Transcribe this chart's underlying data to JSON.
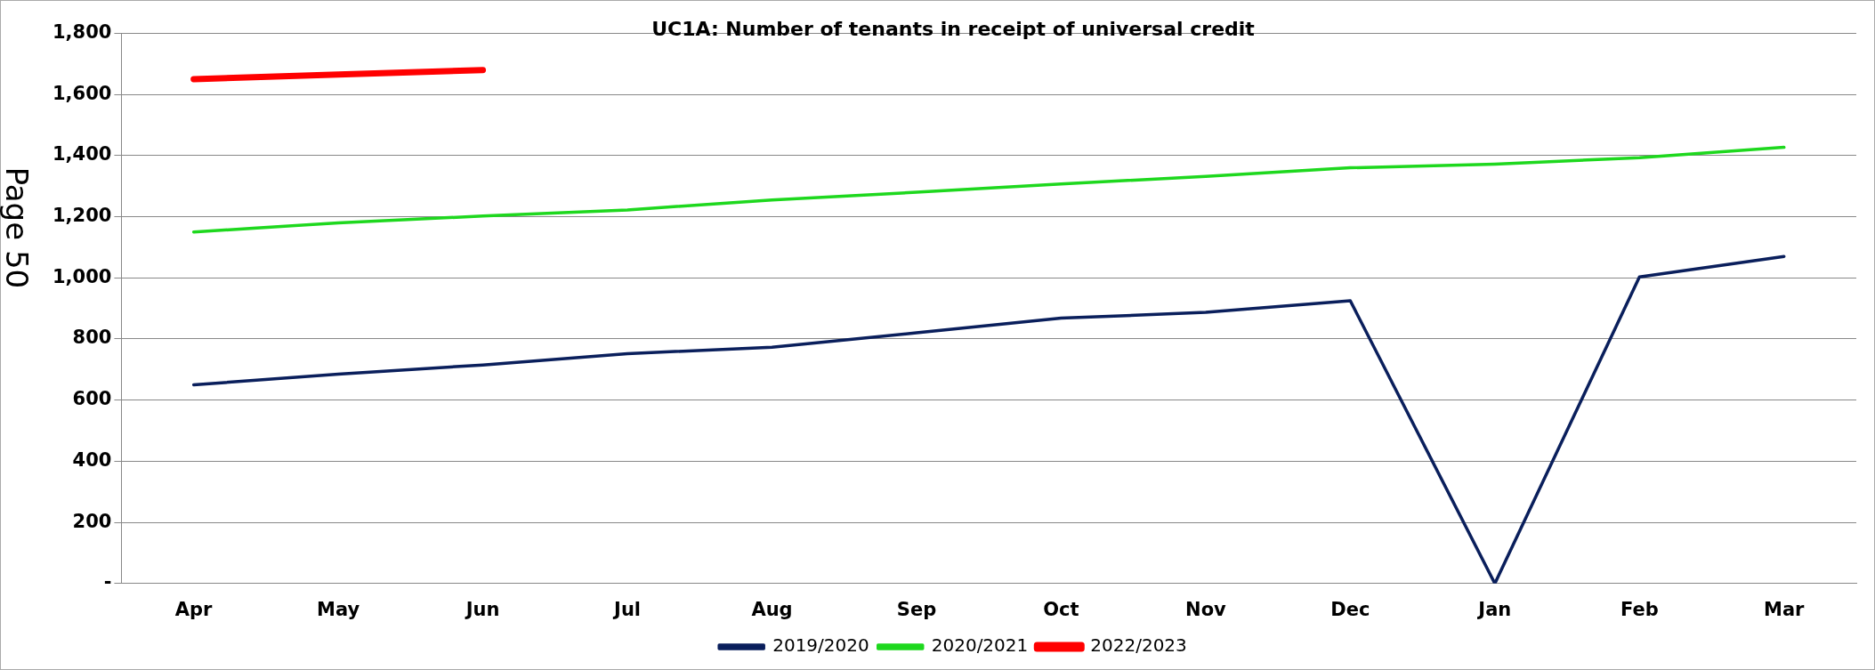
{
  "chart_data": {
    "type": "line",
    "title": "UC1A: Number of tenants in receipt of universal credit",
    "categories": [
      "Apr",
      "May",
      "Jun",
      "Jul",
      "Aug",
      "Sep",
      "Oct",
      "Nov",
      "Dec",
      "Jan",
      "Feb",
      "Mar"
    ],
    "series": [
      {
        "name": "2019/2020",
        "color": "#0a1f5c",
        "values": [
          650,
          685,
          715,
          752,
          773,
          820,
          868,
          887,
          925,
          0,
          1003,
          1070
        ]
      },
      {
        "name": "2020/2021",
        "color": "#1ed81e",
        "values": [
          1150,
          1180,
          1202,
          1222,
          1255,
          1280,
          1307,
          1332,
          1360,
          1372,
          1393,
          1427
        ]
      },
      {
        "name": "2022/2023",
        "color": "#ff0000",
        "values": [
          1650,
          1665,
          1680,
          null,
          null,
          null,
          null,
          null,
          null,
          null,
          null,
          null
        ]
      }
    ],
    "ylim": [
      0,
      1800
    ],
    "yticks": [
      {
        "value": 0,
        "label": "-"
      },
      200,
      400,
      600,
      800,
      {
        "value": 1000,
        "label": "1,000"
      },
      {
        "value": 1200,
        "label": "1,200"
      },
      {
        "value": 1400,
        "label": "1,400"
      },
      {
        "value": 1600,
        "label": "1,600"
      },
      {
        "value": 1800,
        "label": "1,800"
      }
    ],
    "grid": "y",
    "legend": "bottom",
    "marker": "none",
    "line_style": "solid",
    "annotations": [
      "Page 50"
    ]
  }
}
